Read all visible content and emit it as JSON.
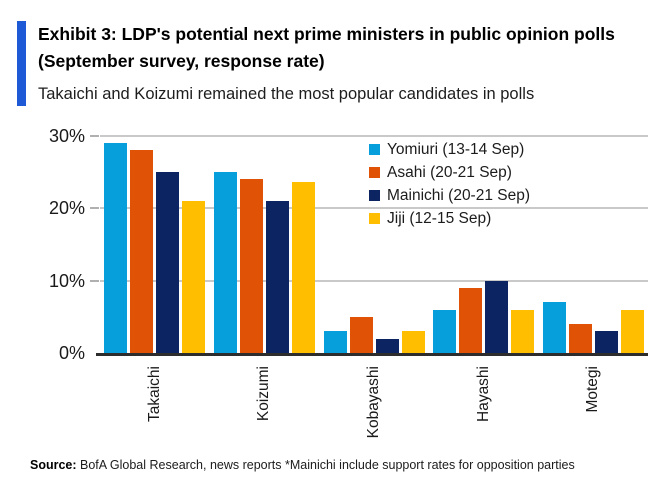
{
  "header": {
    "title": "Exhibit 3: LDP's potential next prime ministers in public opinion polls (September survey, response rate)",
    "subtitle": "Takaichi and Koizumi remained the most popular candidates in polls",
    "accent_color": "#1E59D6"
  },
  "chart_data": {
    "type": "bar",
    "categories": [
      "Takaichi",
      "Koizumi",
      "Kobayashi",
      "Hayashi",
      "Motegi"
    ],
    "series": [
      {
        "name": "Yomiuri (13-14 Sep)",
        "color": "#069EDB",
        "values": [
          29,
          25,
          3,
          6,
          7
        ]
      },
      {
        "name": "Asahi (20-21 Sep)",
        "color": "#E05206",
        "values": [
          28,
          24,
          5,
          9,
          4
        ]
      },
      {
        "name": "Mainichi (20-21 Sep)",
        "color": "#0C2461",
        "values": [
          25,
          21,
          2,
          10,
          3
        ]
      },
      {
        "name": "Jiji (12-15 Sep)",
        "color": "#FFBF00",
        "values": [
          21,
          23.7,
          3,
          6,
          6
        ]
      }
    ],
    "title": "",
    "xlabel": "",
    "ylabel": "",
    "ylim": [
      0,
      30
    ],
    "y_ticks": [
      "0%",
      "10%",
      "20%",
      "30%"
    ],
    "grid": true,
    "gridline_color": "#c9c9c9",
    "legend_position": "top-right-inside"
  },
  "footer": {
    "source_label": "Source:",
    "source_text": " BofA Global Research, news reports *Mainichi include support rates for opposition parties"
  }
}
